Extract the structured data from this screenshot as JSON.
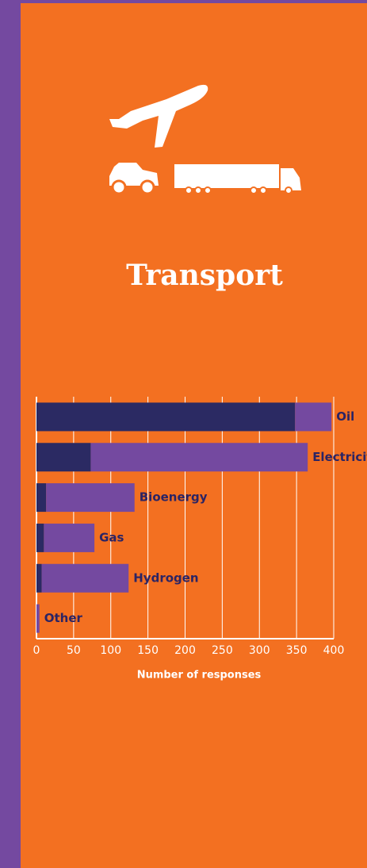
{
  "chart_data": {
    "type": "bar",
    "orientation": "horizontal",
    "stacked": true,
    "title": "Transport",
    "x_label": "Number of responses",
    "categories": [
      "Oil",
      "Electricity",
      "Bioenergy",
      "Gas",
      "Hydrogen",
      "Other"
    ],
    "series": [
      {
        "color": "#2b2a63",
        "values": [
          348,
          73,
          13,
          10,
          7,
          0
        ]
      },
      {
        "color": "#7449a0",
        "values": [
          49,
          292,
          119,
          68,
          117,
          4
        ]
      }
    ],
    "xlim": [
      0,
      400
    ],
    "xticks": [
      0,
      50,
      100,
      150,
      200,
      250,
      300,
      350,
      400
    ],
    "grid": true
  }
}
